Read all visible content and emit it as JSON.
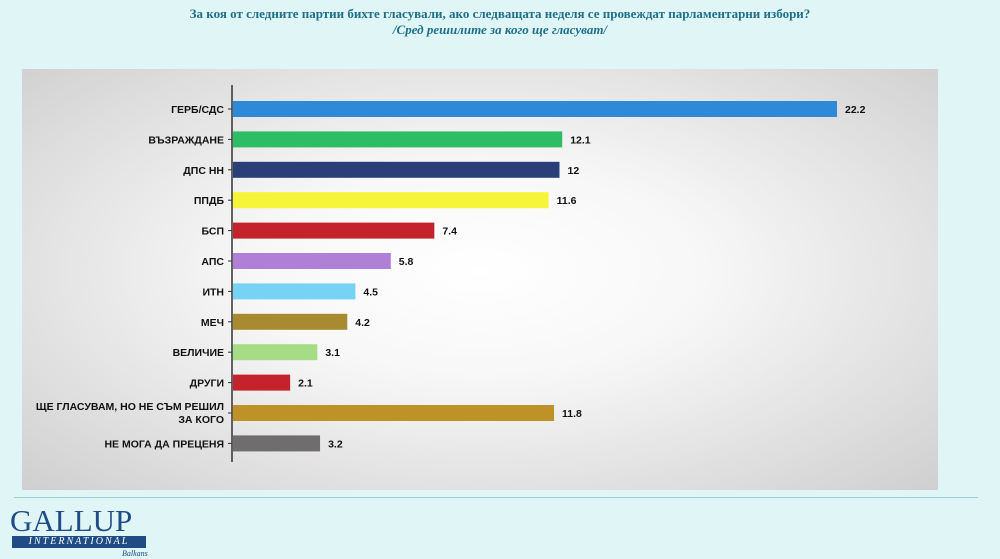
{
  "header": {
    "title": "За коя от следните партии бихте  гласували,  ако следващата неделя се провеждат парламентарни избори?",
    "subtitle": "/Сред решилите за кого ще гласуват/"
  },
  "logo": {
    "brand": "GALLUP",
    "sub": "INTERNATIONAL",
    "region": "Balkans"
  },
  "chart_data": {
    "type": "bar",
    "orientation": "horizontal",
    "categories": [
      "ГЕРБ/СДС",
      "ВЪЗРАЖДАНЕ",
      "ДПС НН",
      "ППДБ",
      "БСП",
      "АПС",
      "ИТН",
      "МЕЧ",
      "ВЕЛИЧИЕ",
      "ДРУГИ",
      "ЩЕ ГЛАСУВАМ, НО НЕ СЪМ РЕШИЛ ЗА КОГО",
      "НЕ МОГА ДА ПРЕЦЕНЯ"
    ],
    "values": [
      22.2,
      12.1,
      12,
      11.6,
      7.4,
      5.8,
      4.5,
      4.2,
      3.1,
      2.1,
      11.8,
      3.2
    ],
    "value_labels": [
      "22.2",
      "12.1",
      "12",
      "11.6",
      "7.4",
      "5.8",
      "4.5",
      "4.2",
      "3.1",
      "2.1",
      "11.8",
      "3.2"
    ],
    "colors": [
      "#2e8ad8",
      "#2ebd65",
      "#2a3f78",
      "#f7f53a",
      "#c4232e",
      "#b07fd6",
      "#76d3f4",
      "#a88b30",
      "#a7dc86",
      "#c4232e",
      "#bf9228",
      "#6f6d6d"
    ],
    "xlim": [
      0,
      22.2
    ],
    "grid": false,
    "legend": "none"
  }
}
